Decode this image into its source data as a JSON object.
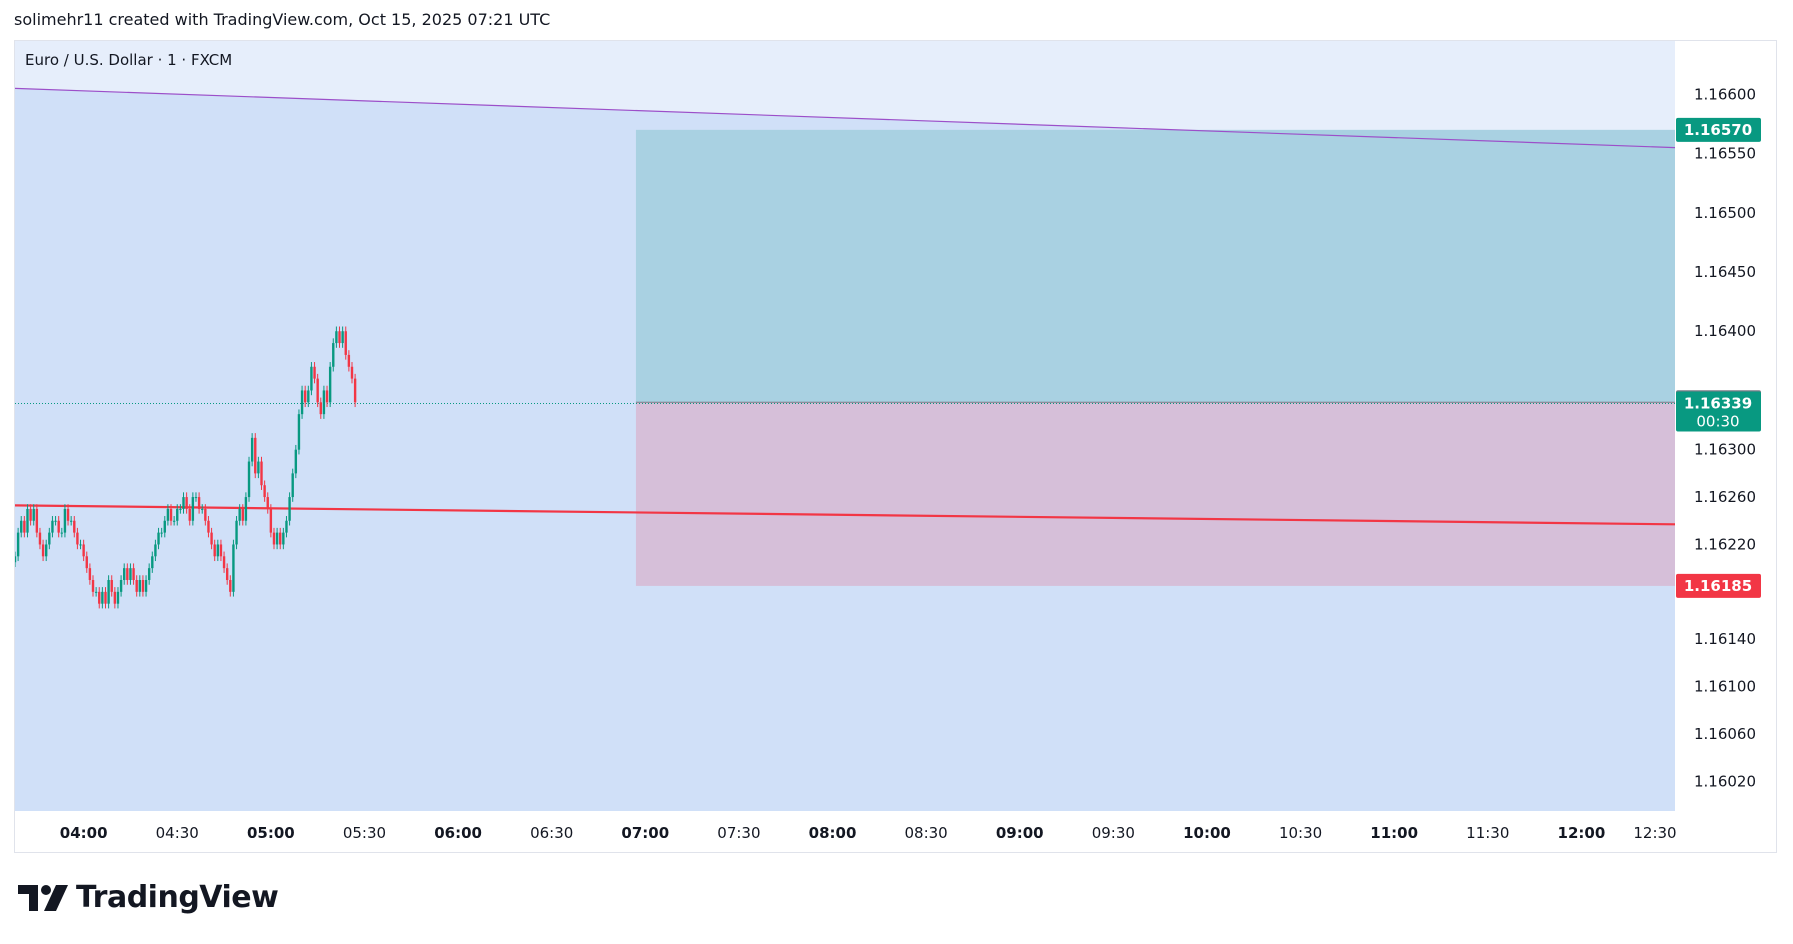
{
  "header": {
    "credit": "solimehr11 created with TradingView.com, Oct 15, 2025 07:21 UTC"
  },
  "brand": {
    "name": "TradingView"
  },
  "chart_data": {
    "type": "candlestick",
    "symbol_label": "Euro / U.S. Dollar · 1 · FXCM",
    "x_ticks": [
      "04:00",
      "04:30",
      "05:00",
      "05:30",
      "06:00",
      "06:30",
      "07:00",
      "07:30",
      "08:00",
      "08:30",
      "09:00",
      "09:30",
      "10:00",
      "10:30",
      "11:00",
      "11:30",
      "12:00",
      "12:30"
    ],
    "x_ticks_bold": [
      "04:00",
      "05:00",
      "06:00",
      "07:00",
      "08:00",
      "09:00",
      "10:00",
      "11:00",
      "12:00"
    ],
    "x_range": [
      "03:38",
      "12:30"
    ],
    "y_ticks": [
      1.166,
      1.1655,
      1.165,
      1.1645,
      1.164,
      1.163,
      1.1626,
      1.1622,
      1.1614,
      1.161,
      1.1606,
      1.1602
    ],
    "y_tick_labels": [
      "1.16600",
      "1.16550",
      "1.16500",
      "1.16450",
      "1.16400",
      "1.16300",
      "1.16260",
      "1.16220",
      "1.16140",
      "1.16100",
      "1.16060",
      "1.16020"
    ],
    "ylim": [
      1.15995,
      1.16645
    ],
    "price_labels": [
      {
        "value": "1.16570",
        "color": "#089981"
      },
      {
        "value": "1.16340",
        "color": "#787b86"
      },
      {
        "value": "1.16339",
        "countdown": "00:30",
        "color": "#089981"
      },
      {
        "value": "1.16185",
        "color": "#f23645"
      }
    ],
    "current_price": 1.16339,
    "position": {
      "type": "long",
      "start_time": "06:57",
      "entry": 1.1634,
      "target": 1.1657,
      "stop": 1.16185,
      "profit_color": "#a9d1e2",
      "loss_color": "#d6bfd9"
    },
    "trendlines": [
      {
        "color": "#9c4fc9",
        "from": [
          "03:38",
          1.16605
        ],
        "to": [
          "12:30",
          1.16555
        ]
      },
      {
        "color": "#f23645",
        "from": [
          "03:38",
          1.16253
        ],
        "to": [
          "12:30",
          1.16237
        ]
      }
    ],
    "colors": {
      "up": "#089981",
      "down": "#f23645",
      "background": "#d0e0f8"
    },
    "candles_close": [
      1.1621,
      1.1623,
      1.1624,
      1.1623,
      1.1625,
      1.1624,
      1.1625,
      1.1623,
      1.1622,
      1.1621,
      1.1622,
      1.1623,
      1.1624,
      1.1624,
      1.1623,
      1.1623,
      1.1625,
      1.1624,
      1.1624,
      1.1623,
      1.1622,
      1.1622,
      1.1621,
      1.162,
      1.1619,
      1.1618,
      1.1618,
      1.1617,
      1.1618,
      1.1617,
      1.1619,
      1.1618,
      1.1617,
      1.1618,
      1.1619,
      1.162,
      1.1619,
      1.162,
      1.1619,
      1.1618,
      1.1619,
      1.1618,
      1.1619,
      1.162,
      1.1621,
      1.1622,
      1.1623,
      1.1623,
      1.1624,
      1.1625,
      1.1624,
      1.1624,
      1.1625,
      1.1625,
      1.1626,
      1.1625,
      1.1624,
      1.1626,
      1.1626,
      1.1625,
      1.1625,
      1.1624,
      1.1623,
      1.1622,
      1.1621,
      1.1622,
      1.1621,
      1.162,
      1.1619,
      1.1618,
      1.1622,
      1.1624,
      1.1625,
      1.1624,
      1.1626,
      1.1629,
      1.1631,
      1.1628,
      1.1629,
      1.1627,
      1.1626,
      1.1625,
      1.1623,
      1.1622,
      1.1623,
      1.1622,
      1.1623,
      1.1624,
      1.1626,
      1.1628,
      1.163,
      1.1633,
      1.1635,
      1.1634,
      1.1635,
      1.1637,
      1.1636,
      1.1634,
      1.1633,
      1.1635,
      1.1634,
      1.1637,
      1.1639,
      1.164,
      1.1639,
      1.164,
      1.1638,
      1.1637,
      1.1636,
      1.1634
    ]
  }
}
